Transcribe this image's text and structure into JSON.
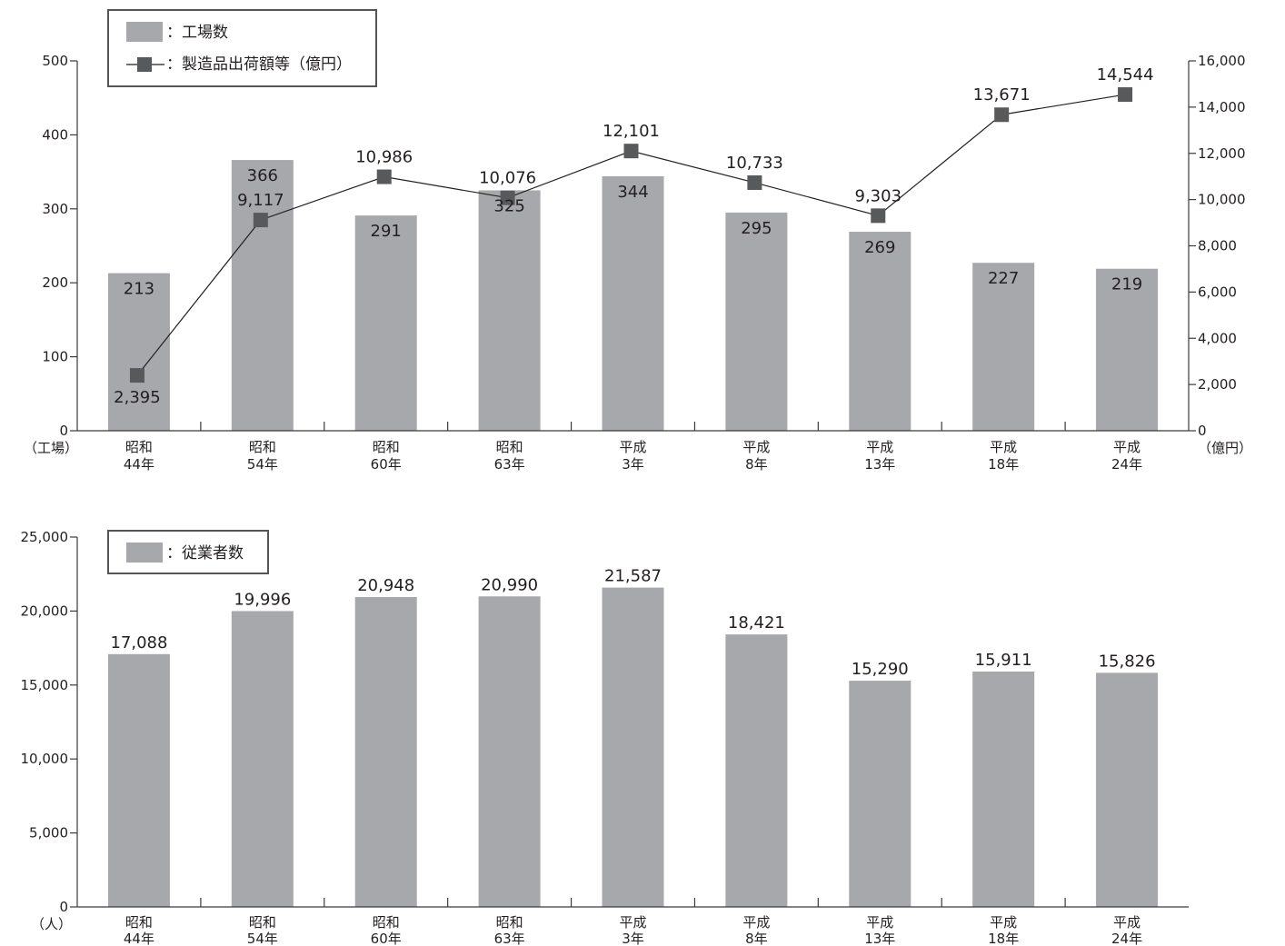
{
  "chart_data": [
    {
      "type": "bar",
      "categories": [
        [
          "昭和",
          "44年"
        ],
        [
          "昭和",
          "54年"
        ],
        [
          "昭和",
          "60年"
        ],
        [
          "昭和",
          "63年"
        ],
        [
          "平成",
          "3年"
        ],
        [
          "平成",
          "8年"
        ],
        [
          "平成",
          "13年"
        ],
        [
          "平成",
          "18年"
        ],
        [
          "平成",
          "24年"
        ]
      ],
      "series": [
        {
          "name": "：工場数",
          "kind": "bar",
          "axis": "left",
          "values": [
            213,
            366,
            291,
            325,
            344,
            295,
            269,
            227,
            219
          ],
          "labels": [
            "213",
            "366",
            "291",
            "325",
            "344",
            "295",
            "269",
            "227",
            "219"
          ]
        },
        {
          "name": "：製造品出荷額等（億円）",
          "kind": "line",
          "axis": "right",
          "values": [
            2395,
            9117,
            10986,
            10076,
            12101,
            10733,
            9303,
            13671,
            14544
          ],
          "labels": [
            "2,395",
            "9,117",
            "10,986",
            "10,076",
            "12,101",
            "10,733",
            "9,303",
            "13,671",
            "14,544"
          ]
        }
      ],
      "ylim": [
        0,
        500
      ],
      "yticks": [
        "0",
        "100",
        "200",
        "300",
        "400",
        "500"
      ],
      "y2lim": [
        0,
        16000
      ],
      "y2ticks": [
        "0",
        "2,000",
        "4,000",
        "6,000",
        "8,000",
        "10,000",
        "12,000",
        "14,000",
        "16,000"
      ],
      "ylabel": "（工場）",
      "y2label": "（億円）",
      "legend": "top-left",
      "grid": false,
      "colors": {
        "bar": "#a7a8ac",
        "line": "#231f20",
        "marker": "#58595b"
      }
    },
    {
      "type": "bar",
      "categories": [
        [
          "昭和",
          "44年"
        ],
        [
          "昭和",
          "54年"
        ],
        [
          "昭和",
          "60年"
        ],
        [
          "昭和",
          "63年"
        ],
        [
          "平成",
          "3年"
        ],
        [
          "平成",
          "8年"
        ],
        [
          "平成",
          "13年"
        ],
        [
          "平成",
          "18年"
        ],
        [
          "平成",
          "24年"
        ]
      ],
      "series": [
        {
          "name": "：従業者数",
          "kind": "bar",
          "axis": "left",
          "values": [
            17088,
            19996,
            20948,
            20990,
            21587,
            18421,
            15290,
            15911,
            15826
          ],
          "labels": [
            "17,088",
            "19,996",
            "20,948",
            "20,990",
            "21,587",
            "18,421",
            "15,290",
            "15,911",
            "15,826"
          ]
        }
      ],
      "ylim": [
        0,
        25000
      ],
      "yticks": [
        "0",
        "5,000",
        "10,000",
        "15,000",
        "20,000",
        "25,000"
      ],
      "ylabel": "（人）",
      "legend": "top-left",
      "grid": false,
      "colors": {
        "bar": "#a7a8ac"
      }
    }
  ]
}
